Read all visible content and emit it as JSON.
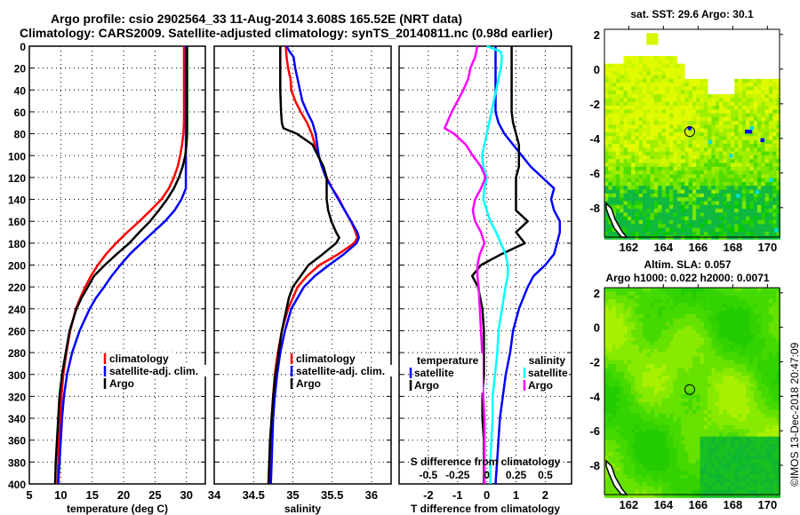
{
  "title_line1": "Argo profile: csio 2902564_33 11-Aug-2014 3.608S 165.52E (NRT data)",
  "title_line2": "Climatology: CARS2009. Satellite-adjusted climatology: synTS_20140811.nc (0.98d earlier)",
  "timestamp": "©IMOS 13-Dec-2018 20:47:09",
  "colors": {
    "climatology": "#ff0000",
    "satellite": "#0000ff",
    "argo": "#000000",
    "salinity_satellite": "#00ffff",
    "salinity_argo": "#ff00ff"
  },
  "chart_data": [
    {
      "type": "line",
      "id": "temperature",
      "xlabel": "temperature (deg C)",
      "ylabel": "",
      "xlim": [
        5,
        33
      ],
      "ylim": [
        400,
        0
      ],
      "xticks": [
        "5",
        "10",
        "15",
        "20",
        "25",
        "30"
      ],
      "xtick_values": [
        5,
        10,
        15,
        20,
        25,
        30
      ],
      "yticks": [
        "0",
        "20",
        "40",
        "60",
        "80",
        "100",
        "120",
        "140",
        "160",
        "180",
        "200",
        "220",
        "240",
        "260",
        "280",
        "300",
        "320",
        "340",
        "360",
        "380",
        "400"
      ],
      "grid": true,
      "legend": {
        "placement": "lower-right",
        "entries": [
          "climatology",
          "satellite-adj. clim.",
          "Argo"
        ]
      },
      "series": [
        {
          "name": "climatology",
          "color_key": "climatology",
          "depth": [
            0,
            20,
            40,
            60,
            70,
            80,
            90,
            100,
            110,
            120,
            130,
            140,
            150,
            160,
            170,
            180,
            190,
            200,
            210,
            220,
            230,
            240,
            260,
            280,
            300,
            320,
            340,
            360,
            380,
            400
          ],
          "values": [
            29.6,
            29.6,
            29.6,
            29.6,
            29.6,
            29.5,
            29.3,
            29.0,
            28.6,
            28.0,
            27.2,
            26.0,
            24.3,
            22.5,
            20.6,
            18.8,
            17.2,
            15.9,
            14.8,
            13.9,
            13.1,
            12.4,
            11.5,
            10.9,
            10.4,
            10.1,
            9.9,
            9.7,
            9.6,
            9.5
          ]
        },
        {
          "name": "satellite-adj. clim.",
          "color_key": "satellite",
          "depth": [
            0,
            20,
            40,
            60,
            80,
            100,
            120,
            130,
            140,
            150,
            160,
            170,
            180,
            190,
            200,
            210,
            220,
            230,
            240,
            260,
            280,
            300,
            320,
            340,
            360,
            380,
            400
          ],
          "values": [
            29.9,
            29.9,
            29.9,
            29.9,
            29.9,
            29.9,
            29.9,
            29.9,
            29.2,
            28.1,
            26.6,
            24.7,
            22.8,
            21.0,
            19.5,
            18.1,
            16.9,
            15.6,
            14.6,
            13.0,
            11.8,
            11.0,
            10.5,
            10.2,
            10.0,
            9.8,
            9.6
          ]
        },
        {
          "name": "Argo",
          "color_key": "argo",
          "depth": [
            0,
            20,
            40,
            60,
            80,
            90,
            100,
            110,
            120,
            130,
            140,
            150,
            160,
            170,
            180,
            190,
            200,
            210,
            215,
            220,
            230,
            240,
            260,
            280,
            300,
            320,
            340,
            360,
            380,
            400
          ],
          "values": [
            30.1,
            30.1,
            30.1,
            30.1,
            30.1,
            30.0,
            29.8,
            29.4,
            28.8,
            28.0,
            26.9,
            25.6,
            24.2,
            22.5,
            20.9,
            18.9,
            17.0,
            15.3,
            14.8,
            14.3,
            13.3,
            12.5,
            11.4,
            10.8,
            10.2,
            9.8,
            9.6,
            9.4,
            9.2,
            9.1
          ]
        }
      ]
    },
    {
      "type": "line",
      "id": "salinity",
      "xlabel": "salinity",
      "xlim": [
        34,
        36.25
      ],
      "ylim": [
        400,
        0
      ],
      "xticks": [
        "34",
        "34.5",
        "35",
        "35.5",
        "36"
      ],
      "xtick_values": [
        34,
        34.5,
        35,
        35.5,
        36
      ],
      "grid": true,
      "legend": {
        "placement": "lower-right",
        "entries": [
          "climatology",
          "satellite-adj. clim.",
          "Argo"
        ]
      },
      "series": [
        {
          "name": "climatology",
          "color_key": "climatology",
          "depth": [
            0,
            10,
            20,
            30,
            40,
            50,
            60,
            70,
            80,
            90,
            100,
            110,
            120,
            130,
            140,
            150,
            160,
            170,
            175,
            180,
            190,
            200,
            210,
            220,
            240,
            260,
            280,
            300,
            320,
            340,
            360,
            380,
            400
          ],
          "values": [
            34.91,
            34.92,
            34.94,
            34.97,
            34.98,
            35.03,
            35.1,
            35.18,
            35.24,
            35.28,
            35.33,
            35.37,
            35.43,
            35.5,
            35.59,
            35.66,
            35.74,
            35.8,
            35.82,
            35.78,
            35.58,
            35.34,
            35.18,
            35.06,
            34.94,
            34.86,
            34.81,
            34.77,
            34.75,
            34.73,
            34.72,
            34.71,
            34.7
          ]
        },
        {
          "name": "satellite-adj. clim.",
          "color_key": "satellite",
          "depth": [
            0,
            5,
            10,
            20,
            30,
            40,
            50,
            60,
            70,
            80,
            90,
            100,
            110,
            120,
            130,
            140,
            150,
            160,
            170,
            175,
            180,
            190,
            200,
            210,
            220,
            240,
            260,
            280,
            300,
            320,
            340,
            360,
            380,
            400
          ],
          "values": [
            34.92,
            34.96,
            35.01,
            35.03,
            35.06,
            35.09,
            35.12,
            35.18,
            35.25,
            35.29,
            35.31,
            35.33,
            35.37,
            35.42,
            35.5,
            35.58,
            35.66,
            35.74,
            35.82,
            35.84,
            35.81,
            35.65,
            35.46,
            35.28,
            35.14,
            34.98,
            34.9,
            34.84,
            34.8,
            34.77,
            34.75,
            34.74,
            34.73,
            34.72
          ]
        },
        {
          "name": "Argo",
          "color_key": "argo",
          "depth": [
            0,
            20,
            40,
            60,
            70,
            75,
            80,
            90,
            100,
            110,
            120,
            130,
            140,
            150,
            160,
            170,
            175,
            180,
            190,
            200,
            210,
            220,
            230,
            240,
            260,
            280,
            300,
            320,
            340,
            360,
            380,
            400
          ],
          "values": [
            34.84,
            34.84,
            34.84,
            34.85,
            34.86,
            34.88,
            35.05,
            35.25,
            35.32,
            35.39,
            35.43,
            35.43,
            35.43,
            35.45,
            35.49,
            35.55,
            35.59,
            35.55,
            35.38,
            35.2,
            35.1,
            35.0,
            34.95,
            34.92,
            34.86,
            34.82,
            34.78,
            34.75,
            34.73,
            34.71,
            34.7,
            34.69
          ]
        }
      ]
    },
    {
      "type": "line",
      "id": "difference",
      "xlabel": "T difference from climatology",
      "secondary_xlabel": "S difference from climatology",
      "xlim": [
        -3,
        2.9
      ],
      "secondary_xlim": [
        -0.75,
        0.725
      ],
      "ylim": [
        400,
        0
      ],
      "xticks": [
        "-2",
        "-1",
        "0",
        "1",
        "2"
      ],
      "xtick_values": [
        -2,
        -1,
        0,
        1,
        2
      ],
      "secondary_xticks": [
        "-0.5",
        "-0.25",
        "0",
        "0.25",
        "0.5"
      ],
      "grid": true,
      "legend": {
        "placement": "lower",
        "groups": [
          {
            "title": "temperature",
            "entries": [
              "satellite",
              "Argo"
            ]
          },
          {
            "title": "salinity",
            "entries": [
              "satellite",
              "Argo"
            ]
          }
        ]
      },
      "series": [
        {
          "name": "temperature satellite",
          "color_key": "satellite",
          "axis": "T",
          "depth": [
            0,
            20,
            40,
            60,
            70,
            80,
            90,
            100,
            110,
            120,
            130,
            140,
            150,
            160,
            170,
            180,
            190,
            200,
            210,
            220,
            240,
            260,
            280,
            300,
            320,
            340,
            360,
            380,
            400
          ],
          "values": [
            0.3,
            0.3,
            0.3,
            0.3,
            0.4,
            0.6,
            0.9,
            1.2,
            1.5,
            1.9,
            2.3,
            2.2,
            2.3,
            2.5,
            2.5,
            2.4,
            2.3,
            2.0,
            1.6,
            1.4,
            1.1,
            0.9,
            0.8,
            0.65,
            0.55,
            0.45,
            0.4,
            0.35,
            0.3
          ]
        },
        {
          "name": "temperature Argo",
          "color_key": "argo",
          "axis": "T",
          "depth": [
            0,
            20,
            40,
            60,
            70,
            80,
            90,
            100,
            110,
            120,
            130,
            140,
            150,
            160,
            165,
            170,
            180,
            190,
            200,
            210,
            220,
            240,
            260,
            280,
            300,
            320,
            340,
            360,
            380,
            400
          ],
          "values": [
            0.85,
            0.85,
            0.85,
            0.85,
            0.9,
            1.0,
            1.1,
            1.1,
            1.1,
            1.0,
            1.0,
            1.0,
            1.0,
            1.4,
            1.2,
            1.0,
            1.3,
            0.5,
            -0.2,
            -0.5,
            -0.3,
            -0.15,
            -0.1,
            -0.1,
            -0.1,
            -0.15,
            -0.15,
            -0.1,
            -0.1,
            -0.1
          ]
        },
        {
          "name": "salinity satellite",
          "color_key": "salinity_satellite",
          "axis": "S",
          "depth": [
            0,
            5,
            10,
            20,
            30,
            40,
            50,
            60,
            70,
            80,
            90,
            100,
            110,
            120,
            130,
            140,
            150,
            160,
            170,
            180,
            190,
            200,
            210,
            220,
            240,
            260,
            280,
            300,
            320,
            340,
            360,
            380,
            400
          ],
          "values": [
            0.0,
            0.12,
            0.13,
            0.12,
            0.1,
            0.08,
            0.06,
            0.04,
            0.02,
            0.0,
            -0.02,
            -0.04,
            -0.03,
            0.0,
            -0.02,
            -0.03,
            0.0,
            0.03,
            0.08,
            0.12,
            0.16,
            0.18,
            0.18,
            0.16,
            0.13,
            0.1,
            0.09,
            0.07,
            0.05,
            0.05,
            0.04,
            0.03,
            0.03
          ]
        },
        {
          "name": "salinity Argo",
          "color_key": "salinity_argo",
          "axis": "S",
          "depth": [
            0,
            10,
            20,
            30,
            40,
            50,
            60,
            70,
            75,
            80,
            90,
            100,
            110,
            120,
            130,
            140,
            150,
            160,
            170,
            180,
            190,
            200,
            210,
            220,
            240,
            260,
            280,
            300,
            320,
            340,
            360,
            380,
            400
          ],
          "values": [
            -0.08,
            -0.1,
            -0.14,
            -0.16,
            -0.2,
            -0.25,
            -0.3,
            -0.34,
            -0.36,
            -0.28,
            -0.18,
            -0.12,
            -0.05,
            -0.01,
            -0.05,
            -0.1,
            -0.12,
            -0.1,
            -0.05,
            -0.02,
            -0.06,
            -0.08,
            -0.08,
            -0.07,
            -0.06,
            -0.05,
            -0.04,
            -0.04,
            -0.03,
            -0.02,
            -0.02,
            -0.02,
            -0.02
          ]
        }
      ]
    },
    {
      "type": "heatmap",
      "id": "sst-map",
      "title": "sat. SST: 29.6 Argo: 30.1",
      "xlim": [
        160.6,
        170.7
      ],
      "ylim": [
        -9.7,
        2.3
      ],
      "xticks": [
        "162",
        "164",
        "166",
        "168",
        "170"
      ],
      "xtick_values": [
        162,
        164,
        166,
        168,
        170
      ],
      "yticks": [
        "2",
        "0",
        "-2",
        "-4",
        "-6",
        "-8"
      ],
      "ytick_values": [
        2,
        0,
        -2,
        -4,
        -6,
        -8
      ],
      "marker": {
        "lon": 165.52,
        "lat": -3.608
      }
    },
    {
      "type": "heatmap",
      "id": "sla-map",
      "title": "Altim. SLA: 0.057",
      "subtitle": "Argo h1000: 0.022 h2000: 0.0071",
      "xlim": [
        160.6,
        170.7
      ],
      "ylim": [
        -9.7,
        2.3
      ],
      "xticks": [
        "162",
        "164",
        "166",
        "168",
        "170"
      ],
      "xtick_values": [
        162,
        164,
        166,
        168,
        170
      ],
      "yticks": [
        "2",
        "0",
        "-2",
        "-4",
        "-6",
        "-8"
      ],
      "ytick_values": [
        2,
        0,
        -2,
        -4,
        -6,
        -8
      ],
      "marker": {
        "lon": 165.52,
        "lat": -3.608
      }
    }
  ]
}
